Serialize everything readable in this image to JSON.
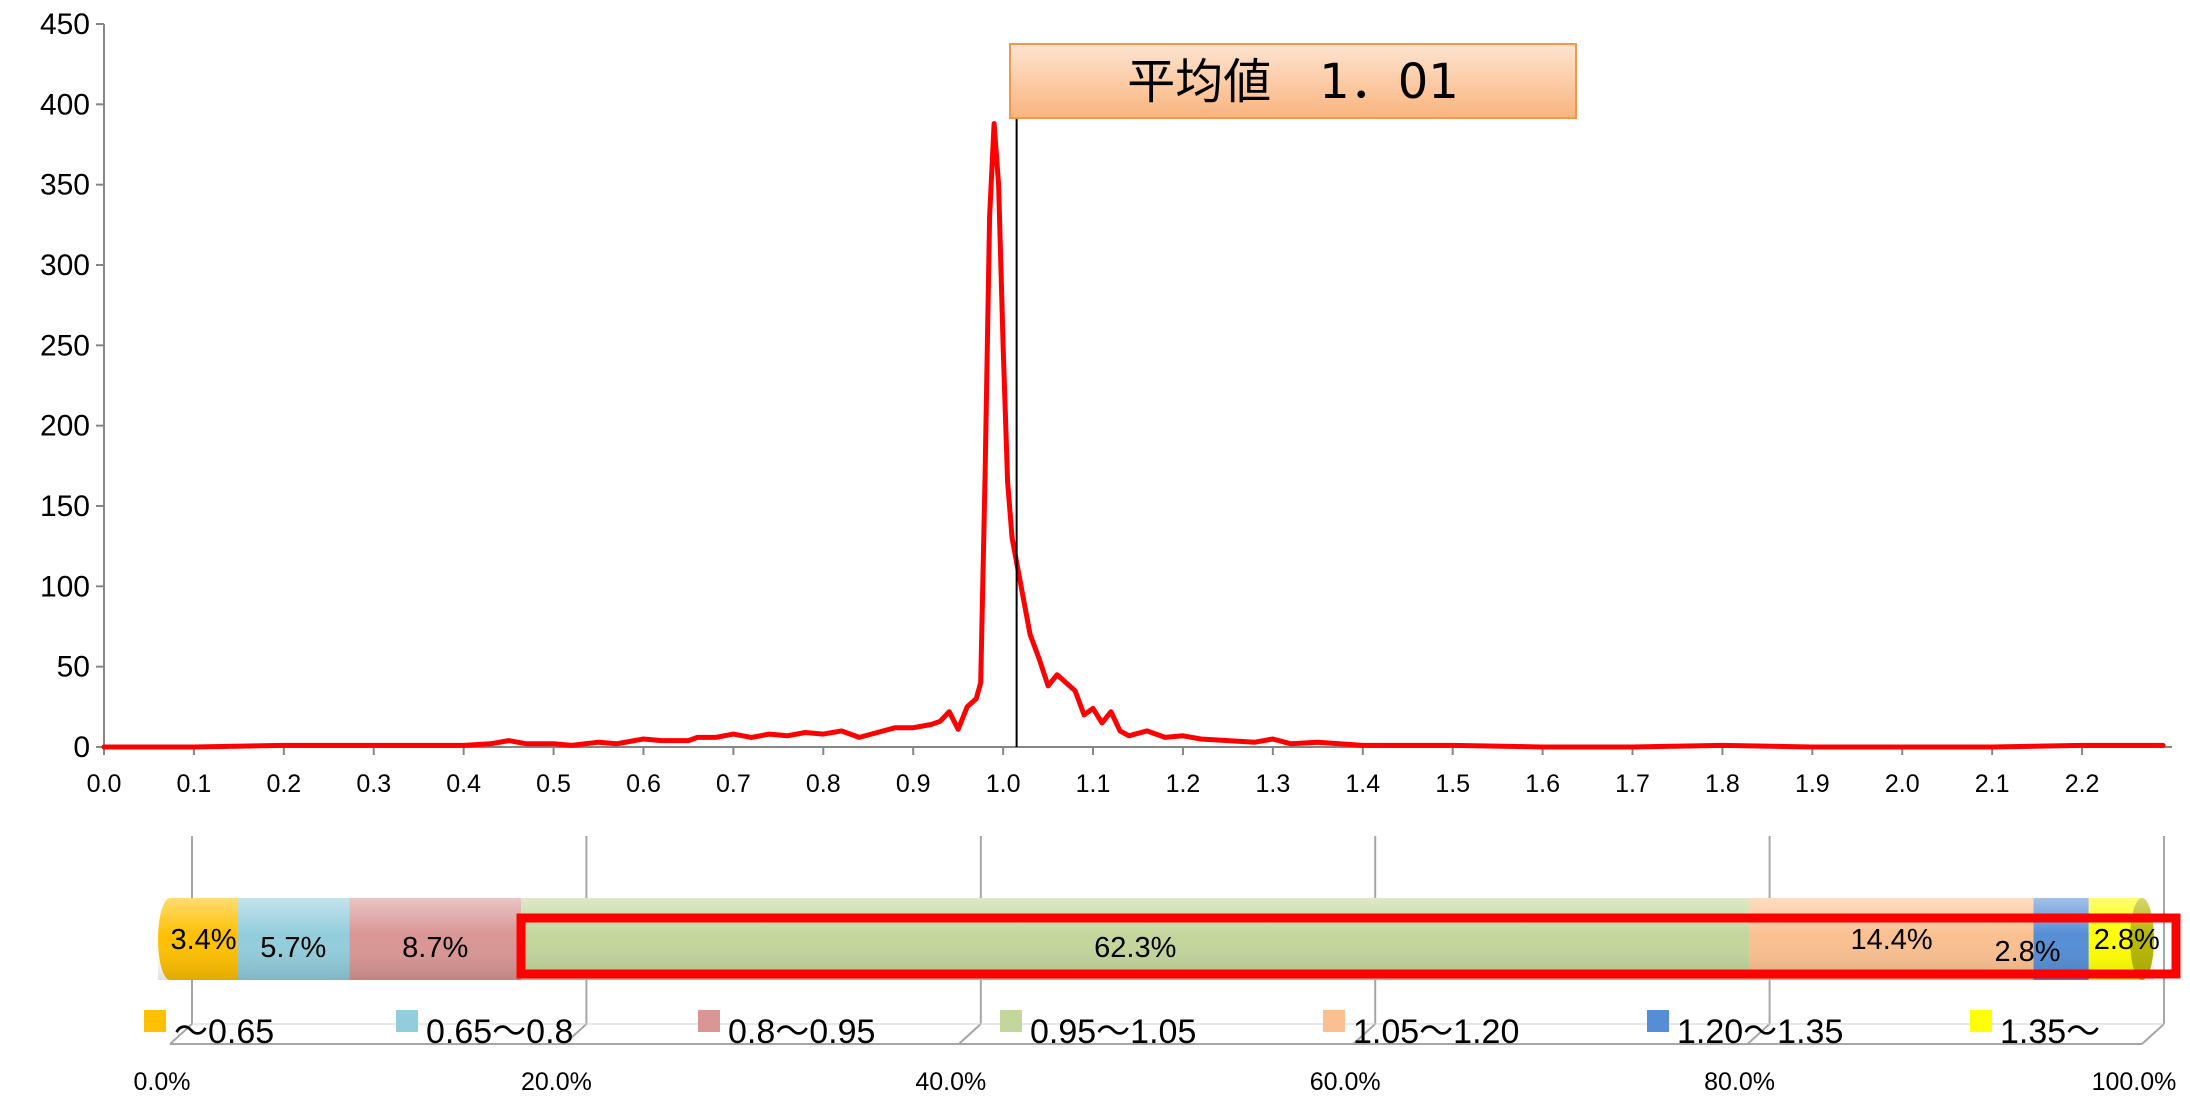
{
  "chart_data": [
    {
      "type": "line",
      "title": "",
      "xlabel": "",
      "ylabel": "",
      "xlim": [
        0.0,
        2.3
      ],
      "ylim": [
        0,
        450
      ],
      "x_ticks": [
        "0.0",
        "0.1",
        "0.2",
        "0.3",
        "0.4",
        "0.5",
        "0.6",
        "0.7",
        "0.8",
        "0.9",
        "1.0",
        "1.1",
        "1.2",
        "1.3",
        "1.4",
        "1.5",
        "1.6",
        "1.7",
        "1.8",
        "1.9",
        "2.0",
        "2.1",
        "2.2"
      ],
      "y_ticks": [
        "0",
        "50",
        "100",
        "150",
        "200",
        "250",
        "300",
        "350",
        "400",
        "450"
      ],
      "grid": false,
      "series": [
        {
          "color": "#ff0000",
          "x": [
            0.0,
            0.1,
            0.2,
            0.3,
            0.4,
            0.43,
            0.45,
            0.47,
            0.5,
            0.52,
            0.55,
            0.57,
            0.6,
            0.62,
            0.65,
            0.66,
            0.68,
            0.7,
            0.72,
            0.74,
            0.76,
            0.78,
            0.8,
            0.82,
            0.84,
            0.86,
            0.88,
            0.9,
            0.92,
            0.93,
            0.94,
            0.95,
            0.96,
            0.97,
            0.975,
            0.98,
            0.985,
            0.99,
            0.995,
            1.0,
            1.005,
            1.01,
            1.02,
            1.03,
            1.04,
            1.05,
            1.06,
            1.07,
            1.08,
            1.09,
            1.1,
            1.11,
            1.12,
            1.13,
            1.14,
            1.16,
            1.18,
            1.2,
            1.22,
            1.25,
            1.28,
            1.3,
            1.32,
            1.35,
            1.4,
            1.5,
            1.6,
            1.7,
            1.8,
            1.9,
            2.0,
            2.1,
            2.2,
            2.29
          ],
          "y": [
            0,
            0,
            1,
            1,
            1,
            2,
            4,
            2,
            2,
            1,
            3,
            2,
            5,
            4,
            4,
            6,
            6,
            8,
            6,
            8,
            7,
            9,
            8,
            10,
            6,
            9,
            12,
            12,
            14,
            16,
            22,
            11,
            25,
            30,
            40,
            170,
            330,
            388,
            350,
            250,
            165,
            130,
            100,
            70,
            55,
            38,
            45,
            40,
            35,
            20,
            24,
            15,
            22,
            10,
            7,
            10,
            6,
            7,
            5,
            4,
            3,
            5,
            2,
            3,
            1,
            1,
            0,
            0,
            1,
            0,
            0,
            0,
            1,
            1
          ]
        }
      ],
      "annotations": [
        "平均値　1．01"
      ]
    },
    {
      "type": "bar",
      "orientation": "horizontal-stacked-100",
      "xlim": [
        0,
        100
      ],
      "x_ticks": [
        "0.0%",
        "20.0%",
        "40.0%",
        "60.0%",
        "80.0%",
        "100.0%"
      ],
      "series": [
        {
          "name": "～0.65",
          "value": 3.4,
          "label": "3.4%",
          "color": "#ffc000"
        },
        {
          "name": "0.65～0.8",
          "value": 5.7,
          "label": "5.7%",
          "color": "#92cddc"
        },
        {
          "name": "0.8～0.95",
          "value": 8.7,
          "label": "8.7%",
          "color": "#d99694"
        },
        {
          "name": "0.95～1.05",
          "value": 62.3,
          "label": "62.3%",
          "color": "#c3d69b"
        },
        {
          "name": "1.05～1.20",
          "value": 14.4,
          "label": "14.4%",
          "color": "#fac090"
        },
        {
          "name": "1.20～1.35",
          "value": 2.8,
          "label": "2.8%",
          "color": "#558ed5"
        },
        {
          "name": "1.35～",
          "value": 2.8,
          "label": "2.8%",
          "color": "#ffff00"
        }
      ],
      "highlight": {
        "from_series": "0.95～1.05",
        "to_series": "1.35～",
        "color": "#ff0000"
      },
      "legend_position": "bottom"
    }
  ]
}
